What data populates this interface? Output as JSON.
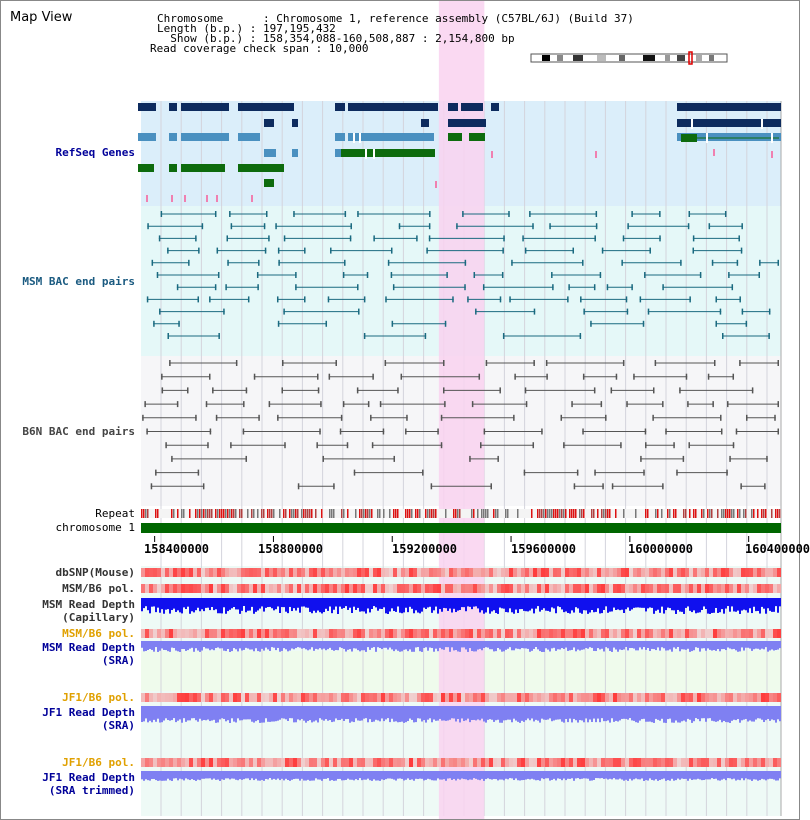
{
  "title": "Map View",
  "info": {
    "chromosome": "Chromosome      : Chromosome 1, reference assembly (C57BL/6J) (Build 37)",
    "length": "Length (b.p.) : 197,195,432",
    "show": "  Show (b.p.) : 158,354,088-160,508,887 : 2,154,800 bp",
    "span": "Read coverage check span : 10,000"
  },
  "tracks": {
    "refseq": "RefSeq Genes",
    "msm_bac": "MSM BAC end pairs",
    "b6n_bac": "B6N BAC end pairs",
    "repeat": "Repeat",
    "chromosome": "chromosome 1",
    "dbsnp": "dbSNP(Mouse)",
    "msm_b6_pol_1": "MSM/B6 pol.",
    "msm_depth_cap_1": "MSM Read Depth",
    "msm_depth_cap_2": "(Capillary)",
    "msm_b6_pol_2": "MSM/B6 pol.",
    "msm_depth_sra_1": "MSM Read Depth",
    "msm_depth_sra_2": "(SRA)",
    "jf1_pol_1": "JF1/B6 pol.",
    "jf1_depth_sra_1": "JF1 Read Depth",
    "jf1_depth_sra_2": "(SRA)",
    "jf1_pol_2": "JF1/B6 pol.",
    "jf1_depth_trim_1": "JF1 Read Depth",
    "jf1_depth_trim_2": "(SRA trimmed)"
  },
  "axis": {
    "ticks": [
      "158400000",
      "158800000",
      "159200000",
      "159600000",
      "160000000",
      "160400000"
    ],
    "range_start": 158354088,
    "range_end": 160508887
  },
  "highlight": {
    "start": 159357000,
    "end": 159510000
  },
  "colors": {
    "refseq_bg": "#dbeefa",
    "bac_bg": "#e5f8f8",
    "highlight": "#f9d2f0",
    "gene_dark": "#0d2b5e",
    "gene_mid": "#4a90c0",
    "gene_green": "#0d6b0d",
    "msm_pair": "#1a6a80",
    "b6n_pair": "#555555",
    "chromosome": "#006600",
    "depth_capillary": "#1010ee",
    "depth_sra": "#7f80f2",
    "pol_red": "#ee2020",
    "label_msm_pol": "#e0a000",
    "label_depth": "#000099"
  }
}
